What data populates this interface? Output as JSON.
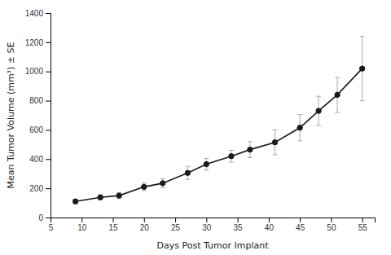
{
  "chart_data": {
    "type": "line",
    "x": [
      9,
      13,
      16,
      20,
      23,
      27,
      30,
      34,
      37,
      41,
      45,
      48,
      51,
      55
    ],
    "values": [
      110,
      138,
      150,
      210,
      235,
      305,
      365,
      420,
      465,
      515,
      615,
      730,
      840,
      1020
    ],
    "yerr": [
      15,
      18,
      20,
      25,
      30,
      45,
      40,
      40,
      55,
      85,
      90,
      100,
      120,
      220
    ],
    "xlabel": "Days Post Tumor Implant",
    "ylabel": "Mean Tumor Volume (mm³) ± SE",
    "xlim": [
      5,
      57
    ],
    "ylim": [
      0,
      1400
    ],
    "xticks": [
      5,
      10,
      15,
      20,
      25,
      30,
      35,
      40,
      45,
      50,
      55
    ],
    "yticks": [
      0,
      200,
      400,
      600,
      800,
      1000,
      1200,
      1400
    ],
    "color": "#1a1a1a",
    "marker": "circle",
    "line_style": "solid"
  }
}
